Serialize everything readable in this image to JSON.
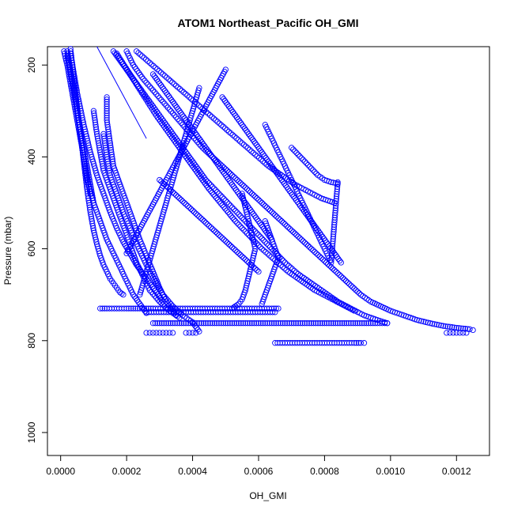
{
  "chart_data": {
    "type": "scatter",
    "title": "ATOM1 Northeast_Pacific OH_GMI",
    "xlabel": "OH_GMI",
    "ylabel": "Pressure (mbar)",
    "xlim": [
      -4e-05,
      0.0013
    ],
    "ylim": [
      1050,
      160
    ],
    "y_reversed": true,
    "x_ticks": [
      {
        "value": 0.0,
        "label": "0.0000"
      },
      {
        "value": 0.0002,
        "label": "0.0002"
      },
      {
        "value": 0.0004,
        "label": "0.0004"
      },
      {
        "value": 0.0006,
        "label": "0.0006"
      },
      {
        "value": 0.0008,
        "label": "0.0008"
      },
      {
        "value": 0.001,
        "label": "0.0010"
      },
      {
        "value": 0.0012,
        "label": "0.0012"
      }
    ],
    "y_ticks": [
      {
        "value": 200,
        "label": "200"
      },
      {
        "value": 400,
        "label": "400"
      },
      {
        "value": 600,
        "label": "600"
      },
      {
        "value": 800,
        "label": "800"
      },
      {
        "value": 1000,
        "label": "1000"
      }
    ],
    "grid": false,
    "marker": "open-circle",
    "series_color": "#0000ff",
    "series": [
      {
        "x": [
          3e-05,
          4e-05,
          5e-05,
          6e-05,
          7e-05,
          8e-05,
          9e-05,
          0.0001,
          0.00011,
          0.00012,
          0.00013,
          0.00014,
          0.00015,
          0.00016,
          0.00017,
          0.00018,
          0.00019
        ],
        "y": [
          165,
          230,
          290,
          350,
          410,
          470,
          520,
          560,
          590,
          615,
          635,
          650,
          665,
          675,
          685,
          695,
          700
        ]
      },
      {
        "x": [
          2e-05,
          3e-05,
          4e-05,
          5e-05,
          6e-05,
          7e-05,
          8e-05,
          0.0001,
          0.00012,
          0.00014,
          0.00016,
          0.00018,
          0.0002,
          0.00022,
          0.00024,
          0.00026
        ],
        "y": [
          170,
          210,
          250,
          300,
          350,
          400,
          450,
          500,
          540,
          580,
          610,
          640,
          670,
          700,
          720,
          740
        ]
      },
      {
        "x": [
          3e-05,
          5e-05,
          7e-05,
          9e-05,
          0.00011,
          0.00013,
          0.00015,
          0.00017,
          0.00019,
          0.00021,
          0.00023,
          0.00025,
          0.00027,
          0.00029,
          0.00031
        ],
        "y": [
          175,
          260,
          330,
          390,
          440,
          480,
          520,
          555,
          585,
          610,
          635,
          655,
          675,
          695,
          715
        ]
      },
      {
        "x": [
          0.00014,
          0.00014,
          0.00015,
          0.00016,
          0.00018,
          0.0002,
          0.00022,
          0.00024,
          0.00026,
          0.00028,
          0.0003,
          0.00032,
          0.00035
        ],
        "y": [
          270,
          320,
          370,
          420,
          460,
          500,
          540,
          580,
          615,
          650,
          685,
          715,
          745
        ]
      },
      {
        "x": [
          0.0001,
          0.00011,
          0.00012,
          0.00013,
          0.00015,
          0.00017,
          0.00019,
          0.00021,
          0.00023,
          0.00025,
          0.00027,
          0.0003,
          0.00033,
          0.00036
        ],
        "y": [
          300,
          350,
          390,
          430,
          470,
          510,
          550,
          590,
          630,
          660,
          690,
          715,
          735,
          750
        ]
      },
      {
        "x": [
          0.00013,
          0.00014,
          0.00015,
          0.00017,
          0.00019,
          0.00021,
          0.00023,
          0.00025,
          0.00027,
          0.00029,
          0.00031,
          0.00034,
          0.00037,
          0.0004,
          0.00042
        ],
        "y": [
          350,
          400,
          440,
          480,
          520,
          555,
          590,
          620,
          650,
          675,
          700,
          725,
          745,
          760,
          780
        ]
      },
      {
        "x": [
          0.00012,
          0.00014,
          0.00017,
          0.0002,
          0.00024,
          0.00028,
          0.00031,
          0.00034,
          0.00037,
          0.0004,
          0.00043,
          0.00046,
          0.00049,
          0.00052,
          0.00055,
          0.00058,
          0.00061,
          0.00064,
          0.00066
        ],
        "y": [
          730,
          730,
          730,
          730,
          730,
          730,
          730,
          730,
          730,
          730,
          730,
          730,
          730,
          730,
          730,
          730,
          730,
          730,
          730
        ]
      },
      {
        "x": [
          0.00026,
          0.00029,
          0.00032,
          0.00035,
          0.00038,
          0.00041,
          0.00044,
          0.00047,
          0.0005,
          0.00053,
          0.00056,
          0.00059,
          0.00062,
          0.00065
        ],
        "y": [
          738,
          738,
          738,
          738,
          738,
          738,
          738,
          738,
          738,
          738,
          738,
          738,
          738,
          738
        ]
      },
      {
        "x": [
          0.00065,
          0.00068,
          0.00071,
          0.00074,
          0.00077,
          0.0008,
          0.00083,
          0.00086,
          0.00089,
          0.00091,
          0.00092
        ],
        "y": [
          805,
          805,
          805,
          805,
          805,
          805,
          805,
          805,
          805,
          805,
          805
        ]
      },
      {
        "x": [
          0.00028,
          0.00032,
          0.00036,
          0.0004,
          0.00044,
          0.00048,
          0.00052,
          0.00056,
          0.0006,
          0.00064,
          0.00068,
          0.00072,
          0.00076,
          0.0008,
          0.00084,
          0.00088,
          0.00092,
          0.00096,
          0.00099
        ],
        "y": [
          762,
          762,
          762,
          762,
          762,
          762,
          762,
          762,
          762,
          762,
          762,
          762,
          762,
          762,
          762,
          762,
          762,
          762,
          762
        ]
      },
      {
        "x": [
          0.00026,
          0.00027,
          0.00028,
          0.00029,
          0.0003,
          0.00031,
          0.00032,
          0.00033,
          0.00034
        ],
        "y": [
          783,
          783,
          783,
          783,
          783,
          783,
          783,
          783,
          783
        ]
      },
      {
        "x": [
          0.00038,
          0.00039,
          0.0004,
          0.00041
        ],
        "y": [
          783,
          783,
          783,
          783
        ]
      },
      {
        "x": [
          0.00117,
          0.00118,
          0.00119,
          0.0012,
          0.00121,
          0.00122,
          0.00123
        ],
        "y": [
          783,
          783,
          783,
          783,
          783,
          783,
          783
        ]
      },
      {
        "x": [
          0.0002,
          0.00022,
          0.00025,
          0.00028,
          0.00031,
          0.00034,
          0.00037,
          0.0004,
          0.00043,
          0.00046,
          0.00049,
          0.00052,
          0.00055,
          0.00058,
          0.00061,
          0.00064,
          0.00067,
          0.0007,
          0.00073,
          0.00076,
          0.00079,
          0.00082,
          0.00085,
          0.00088,
          0.00091,
          0.00094,
          0.00097,
          0.001,
          0.00104,
          0.00108,
          0.00112,
          0.00116,
          0.0012,
          0.00124,
          0.00125
        ],
        "y": [
          170,
          200,
          230,
          255,
          280,
          305,
          330,
          355,
          380,
          400,
          420,
          440,
          460,
          480,
          500,
          520,
          540,
          560,
          580,
          600,
          620,
          640,
          660,
          680,
          700,
          715,
          725,
          735,
          745,
          755,
          762,
          768,
          772,
          775,
          777
        ]
      },
      {
        "x": [
          0.00016,
          0.0002,
          0.00024,
          0.00028,
          0.00032,
          0.00036,
          0.0004,
          0.00044,
          0.00048,
          0.00052,
          0.00056,
          0.0006,
          0.00064,
          0.00068,
          0.00072,
          0.00076,
          0.0008,
          0.00084,
          0.00088,
          0.00092,
          0.00096,
          0.00099
        ],
        "y": [
          170,
          210,
          250,
          290,
          330,
          370,
          410,
          450,
          480,
          510,
          540,
          570,
          600,
          630,
          655,
          675,
          695,
          715,
          730,
          745,
          755,
          762
        ]
      },
      {
        "x": [
          0.00017,
          0.00021,
          0.00025,
          0.00029,
          0.00033,
          0.00037,
          0.00041,
          0.00045,
          0.00049,
          0.00053,
          0.00057,
          0.00061,
          0.00065,
          0.00069,
          0.00073,
          0.00077,
          0.00081,
          0.00085,
          0.00089
        ],
        "y": [
          175,
          220,
          265,
          310,
          350,
          390,
          430,
          470,
          505,
          540,
          570,
          600,
          625,
          650,
          670,
          690,
          705,
          720,
          735
        ]
      },
      {
        "x": [
          0.00023,
          0.00027,
          0.00031,
          0.00035,
          0.00039,
          0.00043,
          0.00047,
          0.00051,
          0.00055,
          0.00059,
          0.00063,
          0.00067,
          0.00071,
          0.00075,
          0.00079,
          0.00083
        ],
        "y": [
          170,
          195,
          220,
          245,
          270,
          295,
          320,
          345,
          370,
          395,
          420,
          440,
          460,
          475,
          490,
          500
        ]
      },
      {
        "x": [
          0.00028,
          0.0003,
          0.00032,
          0.00034,
          0.00036,
          0.00038,
          0.0004,
          0.00042,
          0.00044,
          0.00046,
          0.00048,
          0.0005,
          0.00052,
          0.00054,
          0.00056,
          0.00058,
          0.0006,
          0.00062,
          0.00064
        ],
        "y": [
          220,
          240,
          260,
          280,
          300,
          320,
          340,
          360,
          380,
          400,
          420,
          440,
          460,
          480,
          500,
          520,
          540,
          560,
          580
        ]
      },
      {
        "x": [
          0.00049,
          0.00051,
          0.00053,
          0.00055,
          0.00057,
          0.00059,
          0.00061,
          0.00063,
          0.00065,
          0.00067,
          0.00069,
          0.00071,
          0.00073,
          0.00075,
          0.00077,
          0.00079,
          0.00081,
          0.00083,
          0.00085
        ],
        "y": [
          270,
          290,
          310,
          330,
          350,
          370,
          390,
          410,
          430,
          450,
          470,
          490,
          510,
          530,
          550,
          570,
          590,
          610,
          630
        ]
      },
      {
        "x": [
          0.00062,
          0.00064,
          0.00066,
          0.00068,
          0.0007,
          0.00072,
          0.00074,
          0.00076,
          0.00078,
          0.0008,
          0.00082,
          0.00084
        ],
        "y": [
          330,
          360,
          390,
          420,
          450,
          480,
          510,
          540,
          570,
          600,
          630,
          455
        ]
      },
      {
        "x": [
          0.0005,
          0.00047,
          0.00044,
          0.00041,
          0.00038,
          0.00035,
          0.00032,
          0.00029,
          0.00026,
          0.00023,
          0.0002
        ],
        "y": [
          210,
          250,
          290,
          330,
          370,
          410,
          450,
          490,
          530,
          570,
          610
        ]
      },
      {
        "x": [
          0.00042,
          0.0004,
          0.00038,
          0.00036,
          0.00034,
          0.00032,
          0.0003,
          0.00028,
          0.00026,
          0.00024
        ],
        "y": [
          250,
          300,
          350,
          400,
          450,
          500,
          550,
          600,
          650,
          700
        ]
      },
      {
        "x": [
          0.00055,
          0.00056,
          0.00057,
          0.00058,
          0.00059,
          0.00058,
          0.00057,
          0.00056,
          0.00055,
          0.00054,
          0.00053,
          0.00052
        ],
        "y": [
          480,
          510,
          540,
          570,
          600,
          630,
          660,
          690,
          710,
          720,
          725,
          730
        ]
      },
      {
        "x": [
          0.00062,
          0.00063,
          0.00064,
          0.00065,
          0.00066,
          0.00065,
          0.00064,
          0.00063,
          0.00062,
          0.00061
        ],
        "y": [
          540,
          560,
          580,
          600,
          620,
          640,
          660,
          680,
          700,
          720
        ]
      },
      {
        "x": [
          0.0003,
          0.00033,
          0.00036,
          0.00039,
          0.00042,
          0.00045,
          0.00048,
          0.00051,
          0.00054,
          0.00057,
          0.0006
        ],
        "y": [
          450,
          470,
          490,
          510,
          530,
          550,
          570,
          590,
          610,
          630,
          650
        ]
      },
      {
        "x": [
          0.0007,
          0.00072,
          0.00074,
          0.00076,
          0.00078,
          0.0008,
          0.00082,
          0.00084
        ],
        "y": [
          380,
          395,
          410,
          425,
          440,
          450,
          455,
          458
        ]
      },
      {
        "x": [
          2e-05,
          3e-05,
          4e-05,
          5e-05,
          6e-05,
          7e-05,
          8e-05,
          9e-05,
          0.0001
        ],
        "y": [
          180,
          220,
          260,
          300,
          340,
          380,
          420,
          460,
          500
        ]
      },
      {
        "x": [
          1e-05,
          2e-05,
          3e-05,
          4e-05,
          5e-05,
          6e-05,
          7e-05,
          8e-05,
          9e-05
        ],
        "y": [
          170,
          200,
          240,
          280,
          320,
          360,
          400,
          440,
          480
        ]
      }
    ],
    "trend_line": {
      "x": [
        0.00011,
        0.00026
      ],
      "y": [
        160,
        360
      ]
    }
  }
}
